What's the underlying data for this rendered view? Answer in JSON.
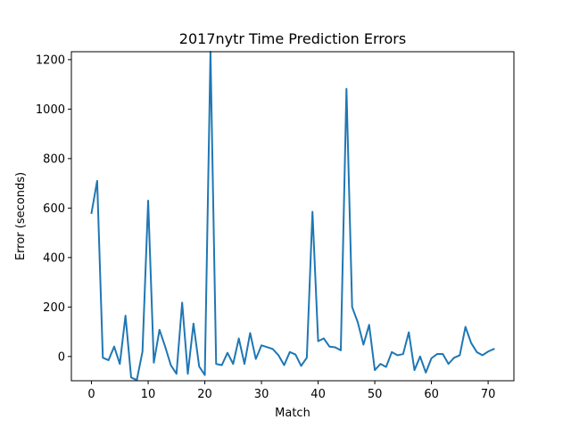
{
  "chart_data": {
    "type": "line",
    "title": "2017nytr Time Prediction Errors",
    "xlabel": "Match",
    "ylabel": "Error (seconds)",
    "xlim": [
      -3.55,
      74.55
    ],
    "ylim": [
      -98,
      1232
    ],
    "xticks": [
      0,
      10,
      20,
      30,
      40,
      50,
      60,
      70
    ],
    "yticks": [
      0,
      200,
      400,
      600,
      800,
      1000,
      1200
    ],
    "grid": false,
    "legend": "none",
    "series": [
      {
        "color": "#1f77b4",
        "x": [
          0,
          1,
          2,
          3,
          4,
          5,
          6,
          7,
          8,
          9,
          10,
          11,
          12,
          13,
          14,
          15,
          16,
          17,
          18,
          19,
          20,
          21,
          22,
          23,
          24,
          25,
          26,
          27,
          28,
          29,
          30,
          31,
          32,
          33,
          34,
          35,
          36,
          37,
          38,
          39,
          40,
          41,
          42,
          43,
          44,
          45,
          46,
          47,
          48,
          49,
          50,
          51,
          52,
          53,
          54,
          55,
          56,
          57,
          58,
          59,
          60,
          61,
          62,
          63,
          64,
          65,
          66,
          67,
          68,
          69,
          70,
          71
        ],
        "values": [
          580,
          710,
          -5,
          -15,
          40,
          -30,
          165,
          -85,
          -95,
          20,
          630,
          -25,
          108,
          40,
          -35,
          -70,
          218,
          -70,
          133,
          -40,
          -75,
          1232,
          -30,
          -35,
          15,
          -30,
          73,
          -30,
          95,
          -10,
          45,
          38,
          30,
          5,
          -35,
          18,
          8,
          -38,
          -5,
          585,
          62,
          73,
          40,
          37,
          25,
          1082,
          200,
          138,
          48,
          128,
          -55,
          -30,
          -42,
          18,
          5,
          10,
          98,
          -55,
          0,
          -65,
          -7,
          10,
          10,
          -30,
          -5,
          5,
          120,
          55,
          18,
          5,
          20,
          30
        ]
      }
    ]
  }
}
